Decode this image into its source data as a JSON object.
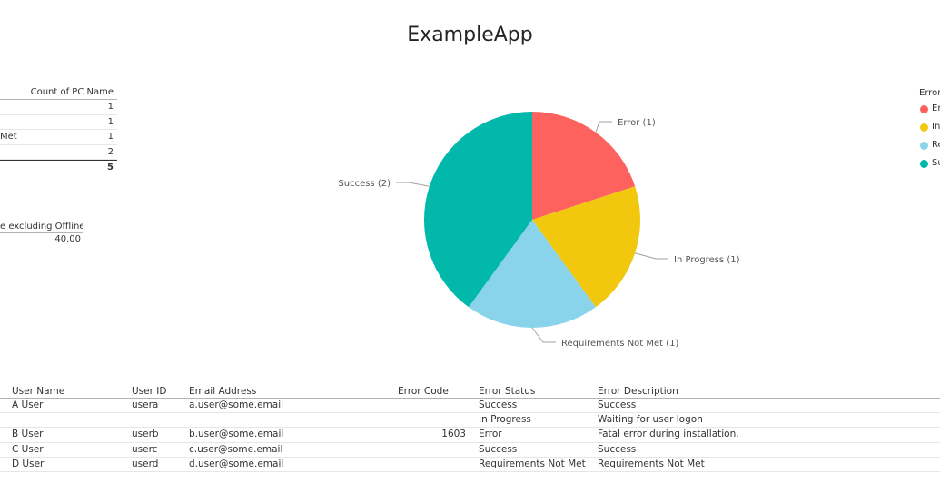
{
  "title": "ExampleApp",
  "summary_table": {
    "header": "Count of PC Name",
    "rows": [
      {
        "label": "",
        "value": "1"
      },
      {
        "label": "",
        "value": "1"
      },
      {
        "label": "Met",
        "value": "1"
      },
      {
        "label": "",
        "value": "2"
      }
    ],
    "total": "5"
  },
  "metric": {
    "header": "e excluding Offline",
    "value": "40.00"
  },
  "legend": {
    "title": "Error",
    "items": [
      "Er",
      "In",
      "Re",
      "Su"
    ]
  },
  "chart_data": {
    "type": "pie",
    "slices": [
      {
        "label": "Error (1)",
        "value": 1,
        "color": "#fd625e"
      },
      {
        "label": "In Progress (1)",
        "value": 1,
        "color": "#f2c80f"
      },
      {
        "label": "Requirements Not Met (1)",
        "value": 1,
        "color": "#8ad4eb"
      },
      {
        "label": "Success (2)",
        "value": 2,
        "color": "#01b8aa"
      }
    ]
  },
  "table": {
    "headers": [
      "User Name",
      "User ID",
      "Email Address",
      "Error Code",
      "Error Status",
      "Error Description"
    ],
    "rows": [
      [
        "A User",
        "usera",
        "a.user@some.email",
        "",
        "Success",
        "Success"
      ],
      [
        "",
        "",
        "",
        "",
        "In Progress",
        "Waiting for user logon"
      ],
      [
        "B User",
        "userb",
        "b.user@some.email",
        "1603",
        "Error",
        "Fatal error during installation."
      ],
      [
        "C User",
        "userc",
        "c.user@some.email",
        "",
        "Success",
        "Success"
      ],
      [
        "D User",
        "userd",
        "d.user@some.email",
        "",
        "Requirements Not Met",
        "Requirements Not Met"
      ]
    ]
  }
}
